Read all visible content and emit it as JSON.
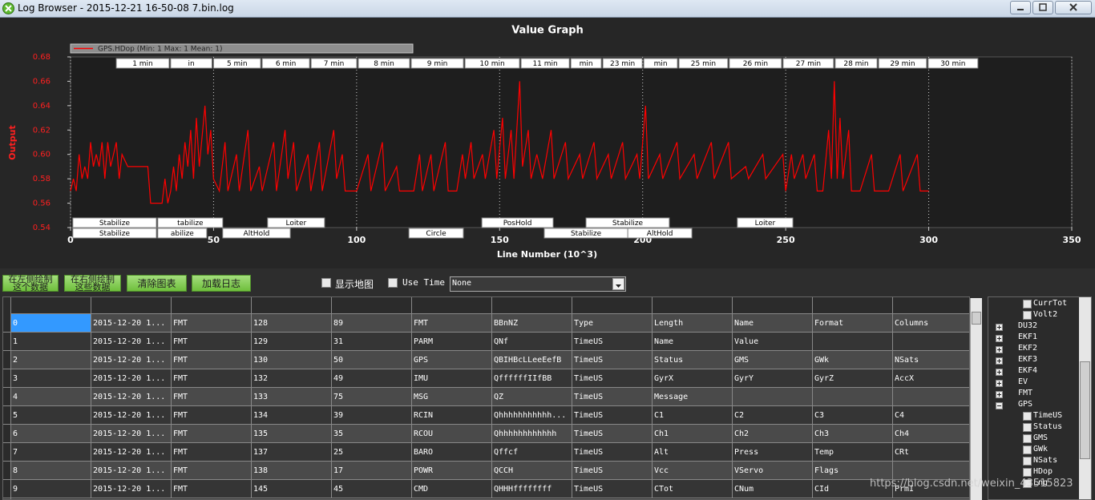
{
  "window": {
    "title": "Log Browser - 2015-12-21 16-50-08 7.bin.log"
  },
  "chart_data": {
    "type": "line",
    "title": "Value Graph",
    "x_label": "Line Number (10^3)",
    "y_label": "Output",
    "xlim": [
      0,
      350
    ],
    "ylim": [
      0.54,
      0.68
    ],
    "xticks": [
      0,
      50,
      100,
      150,
      200,
      250,
      300,
      350
    ],
    "yticks": [
      0.54,
      0.56,
      0.58,
      {
        "value": 0.6,
        "label": "0.60"
      },
      0.62,
      0.64,
      0.66,
      0.68
    ],
    "grid": true,
    "x": [
      0,
      1,
      2,
      3,
      4,
      5,
      6,
      7,
      8,
      9,
      10,
      11,
      12,
      13,
      14,
      16,
      17,
      18,
      20,
      24,
      27,
      28,
      32,
      33,
      34,
      35,
      36,
      37,
      38,
      39,
      40,
      41,
      42,
      43,
      44,
      45,
      47,
      48,
      49,
      50,
      52,
      54,
      55,
      58,
      59,
      62,
      63,
      66,
      67,
      71,
      72,
      75,
      76,
      78,
      79,
      83,
      84,
      87,
      88,
      92,
      93,
      95,
      96,
      100,
      104,
      105,
      109,
      110,
      114,
      115,
      120,
      122,
      123,
      126,
      127,
      131,
      132,
      135,
      137,
      138,
      140,
      141,
      144,
      145,
      148,
      149,
      151,
      152,
      154,
      155,
      157,
      158,
      160,
      161,
      163,
      165,
      168,
      169,
      173,
      174,
      178,
      179,
      183,
      184,
      188,
      189,
      193,
      194,
      198,
      199,
      201,
      202,
      206,
      207,
      212,
      213,
      218,
      219,
      224,
      225,
      230,
      231,
      236,
      237,
      242,
      243,
      249,
      250,
      252,
      253,
      256,
      257,
      260,
      261,
      263,
      265,
      266,
      267,
      268,
      269,
      270,
      272,
      273,
      276,
      280,
      281,
      286,
      290,
      291,
      296,
      297,
      300
    ],
    "series": [
      {
        "name": "GPS.HDop (Min: 1 Max: 1 Mean: 1)",
        "color": "#ff0000",
        "values": [
          0.57,
          0.58,
          0.57,
          0.6,
          0.58,
          0.59,
          0.58,
          0.61,
          0.59,
          0.6,
          0.59,
          0.61,
          0.58,
          0.61,
          0.59,
          0.61,
          0.58,
          0.6,
          0.59,
          0.59,
          0.59,
          0.56,
          0.56,
          0.58,
          0.56,
          0.57,
          0.59,
          0.57,
          0.6,
          0.58,
          0.61,
          0.59,
          0.62,
          0.58,
          0.63,
          0.59,
          0.64,
          0.6,
          0.62,
          0.58,
          0.57,
          0.61,
          0.57,
          0.6,
          0.57,
          0.62,
          0.57,
          0.59,
          0.57,
          0.61,
          0.57,
          0.62,
          0.58,
          0.61,
          0.57,
          0.6,
          0.57,
          0.61,
          0.57,
          0.62,
          0.58,
          0.6,
          0.57,
          0.57,
          0.6,
          0.57,
          0.61,
          0.57,
          0.59,
          0.57,
          0.57,
          0.6,
          0.57,
          0.6,
          0.57,
          0.61,
          0.57,
          0.57,
          0.6,
          0.58,
          0.61,
          0.58,
          0.6,
          0.58,
          0.62,
          0.58,
          0.63,
          0.58,
          0.62,
          0.58,
          0.66,
          0.59,
          0.62,
          0.58,
          0.6,
          0.58,
          0.62,
          0.58,
          0.61,
          0.58,
          0.6,
          0.58,
          0.61,
          0.58,
          0.6,
          0.58,
          0.61,
          0.58,
          0.6,
          0.58,
          0.64,
          0.58,
          0.6,
          0.58,
          0.61,
          0.58,
          0.6,
          0.58,
          0.61,
          0.58,
          0.61,
          0.58,
          0.59,
          0.58,
          0.6,
          0.58,
          0.6,
          0.57,
          0.6,
          0.58,
          0.6,
          0.58,
          0.6,
          0.57,
          0.57,
          0.62,
          0.58,
          0.66,
          0.58,
          0.63,
          0.58,
          0.62,
          0.57,
          0.57,
          0.6,
          0.57,
          0.57,
          0.6,
          0.57,
          0.6,
          0.57,
          0.57
        ]
      }
    ],
    "time_markers": [
      {
        "label": "1 min",
        "x": 16.0
      },
      {
        "label": "in",
        "x": 35.0
      },
      {
        "label": "5 min",
        "x": 50
      },
      {
        "label": "6 min",
        "x": 67.0
      },
      {
        "label": "7 min",
        "x": 84.1
      },
      {
        "label": "8 min",
        "x": 100.6
      },
      {
        "label": "9 min",
        "x": 119.1
      },
      {
        "label": "10 min",
        "x": 137.9
      },
      {
        "label": "11 min",
        "x": 157.5
      },
      {
        "label": "min",
        "x": 174.9
      },
      {
        "label": "23 min",
        "x": 186.1
      },
      {
        "label": "min",
        "x": 200.4
      },
      {
        "label": "25 min",
        "x": 212.7
      },
      {
        "label": "26 min",
        "x": 230.3
      },
      {
        "label": "27 min",
        "x": 249.1
      },
      {
        "label": "28 min",
        "x": 267.3
      },
      {
        "label": "29 min",
        "x": 282.5
      },
      {
        "label": "30 min",
        "x": 299.8
      }
    ],
    "flight_modes_upper": [
      {
        "label": "Stabilize",
        "start": 0.8,
        "end": 30.0
      },
      {
        "label": "tabilize",
        "start": 30.5,
        "end": 53.2
      },
      {
        "label": "Loiter",
        "start": 68.9,
        "end": 88.8
      },
      {
        "label": "PosHold",
        "start": 143.8,
        "end": 168.7
      },
      {
        "label": "Stabilize",
        "start": 180.2,
        "end": 209.3
      },
      {
        "label": "Loiter",
        "start": 233.1,
        "end": 252.5
      }
    ],
    "flight_modes_lower": [
      {
        "label": "Stabilize",
        "start": 0.8,
        "end": 30.0
      },
      {
        "label": "abilize",
        "start": 30.5,
        "end": 47.6
      },
      {
        "label": "AltHold",
        "start": 53.2,
        "end": 76.8
      },
      {
        "label": "Circle",
        "start": 118.3,
        "end": 137.3
      },
      {
        "label": "Stabilize",
        "start": 165.6,
        "end": 194.8
      },
      {
        "label": "AltHold",
        "start": 194.8,
        "end": 217.2
      }
    ]
  },
  "toolbar": {
    "buttons": [
      {
        "lines": [
          "在左侧绘制",
          "这个数据"
        ]
      },
      {
        "lines": [
          "在右侧绘制",
          "这些数据"
        ]
      },
      {
        "lines": [
          "清除图表"
        ]
      },
      {
        "lines": [
          "加载日志"
        ]
      }
    ],
    "show_map": "显示地图",
    "use_time": "Use Time",
    "select_value": "None"
  },
  "table": {
    "rows": [
      [
        "0",
        "2015-12-20 1...",
        "FMT",
        "128",
        "89",
        "FMT",
        "BBnNZ",
        "Type",
        "Length",
        "Name",
        "Format",
        "Columns"
      ],
      [
        "1",
        "2015-12-20 1...",
        "FMT",
        "129",
        "31",
        "PARM",
        "QNf",
        "TimeUS",
        "Name",
        "Value"
      ],
      [
        "2",
        "2015-12-20 1...",
        "FMT",
        "130",
        "50",
        "GPS",
        "QBIHBcLLeeEefB",
        "TimeUS",
        "Status",
        "GMS",
        "GWk",
        "NSats"
      ],
      [
        "3",
        "2015-12-20 1...",
        "FMT",
        "132",
        "49",
        "IMU",
        "QffffffIIfBB",
        "TimeUS",
        "GyrX",
        "GyrY",
        "GyrZ",
        "AccX"
      ],
      [
        "4",
        "2015-12-20 1...",
        "FMT",
        "133",
        "75",
        "MSG",
        "QZ",
        "TimeUS",
        "Message"
      ],
      [
        "5",
        "2015-12-20 1...",
        "FMT",
        "134",
        "39",
        "RCIN",
        "Qhhhhhhhhhhh...",
        "TimeUS",
        "C1",
        "C2",
        "C3",
        "C4"
      ],
      [
        "6",
        "2015-12-20 1...",
        "FMT",
        "135",
        "35",
        "RCOU",
        "Qhhhhhhhhhhhh",
        "TimeUS",
        "Ch1",
        "Ch2",
        "Ch3",
        "Ch4"
      ],
      [
        "7",
        "2015-12-20 1...",
        "FMT",
        "137",
        "25",
        "BARO",
        "Qffcf",
        "TimeUS",
        "Alt",
        "Press",
        "Temp",
        "CRt"
      ],
      [
        "8",
        "2015-12-20 1...",
        "FMT",
        "138",
        "17",
        "POWR",
        "QCCH",
        "TimeUS",
        "Vcc",
        "VServo",
        "Flags"
      ],
      [
        "9",
        "2015-12-20 1...",
        "FMT",
        "145",
        "45",
        "CMD",
        "QHHHffffffff",
        "TimeUS",
        "CTot",
        "CNum",
        "CId",
        "PrmI"
      ]
    ]
  },
  "tree": {
    "previous_children": [
      "CurrTot",
      "Volt2"
    ],
    "nodes": [
      {
        "label": "DU32"
      },
      {
        "label": "EKF1"
      },
      {
        "label": "EKF2"
      },
      {
        "label": "EKF3"
      },
      {
        "label": "EKF4"
      },
      {
        "label": "EV"
      },
      {
        "label": "FMT"
      },
      {
        "label": "GPS",
        "children": [
          "TimeUS",
          "Status",
          "GMS",
          "GWk",
          "NSats",
          "HDop",
          "Lng"
        ]
      }
    ]
  },
  "watermark": "https://blog.csdn.net/weixin_43515823"
}
